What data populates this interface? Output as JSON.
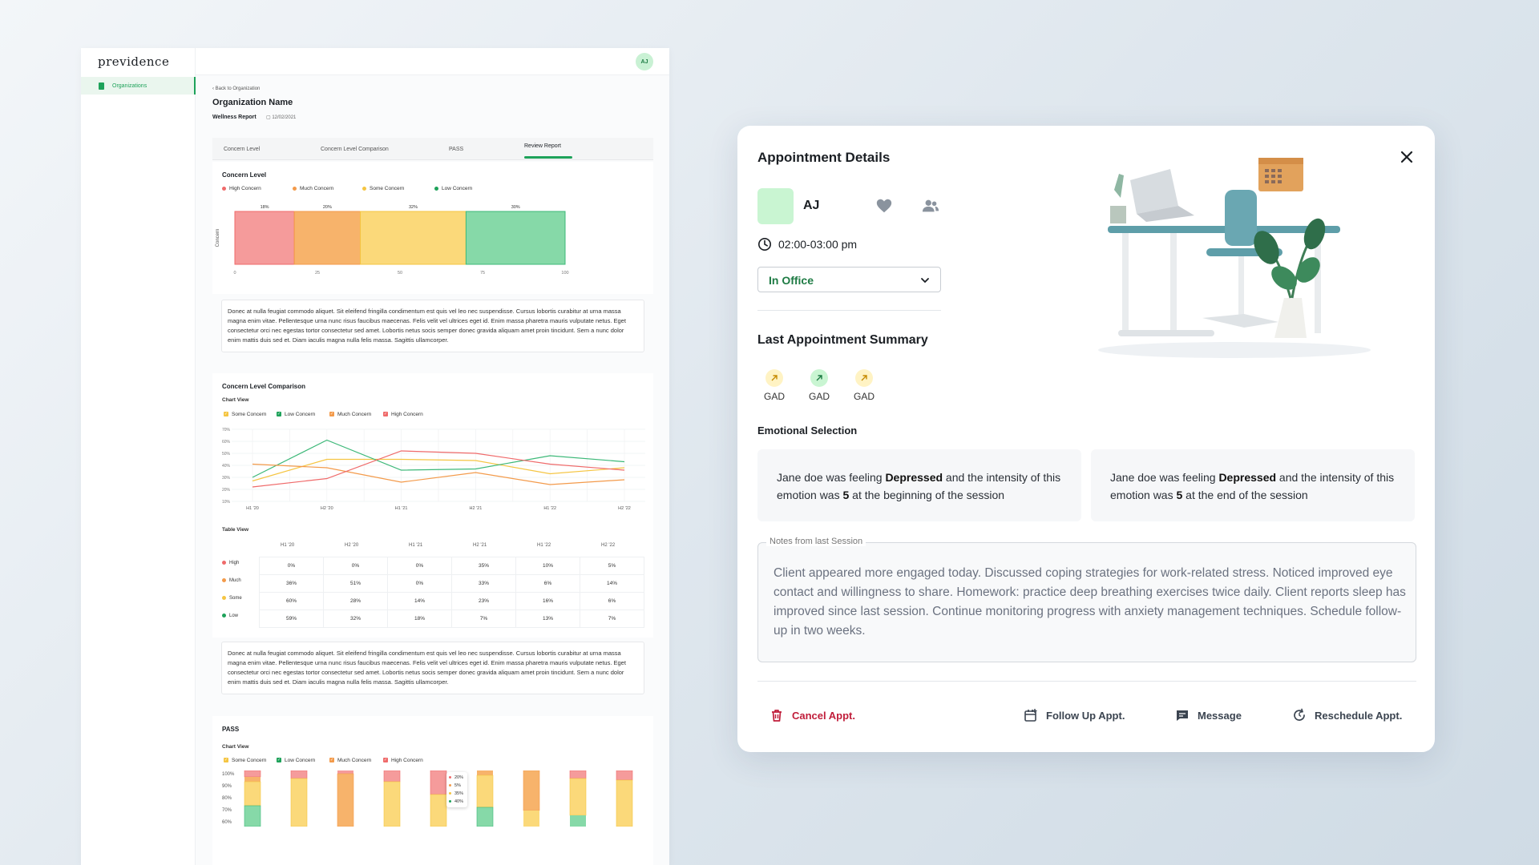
{
  "app": {
    "logo": "previdence",
    "nav_item": "Organizations",
    "user_initials": "AJ"
  },
  "report": {
    "back": "Back to Organization",
    "org_name": "Organization Name",
    "report_title": "Wellness Report",
    "date": "12/02/2021",
    "tabs": [
      "Concern Level",
      "Concern Level Comparison",
      "PASS",
      "Review Report"
    ],
    "concern_level": {
      "title": "Concern Level",
      "legend": [
        "High Concern",
        "Much Concern",
        "Some Concern",
        "Low Concern"
      ],
      "ylabel": "Concern",
      "pct_labels": [
        "18%",
        "20%",
        "32%",
        "30%"
      ],
      "ticks": [
        "0",
        "25",
        "50",
        "75",
        "100"
      ]
    },
    "paragraph": "Donec at nulla feugiat commodo aliquet. Sit eleifend fringilla condimentum est quis vel leo nec suspendisse. Cursus lobortis curabitur at urna massa magna enim vitae. Pellentesque urna nunc risus faucibus maecenas. Felis velit vel ultrices eget id. Enim massa pharetra mauris vulputate netus. Eget consectetur orci nec egestas tortor consectetur sed amet. Lobortis netus socis semper donec gravida aliquam amet proin tincidunt. Sem a nunc dolor enim mattis duis sed et. Diam iaculis magna nulla felis massa. Sagittis ullamcorper.",
    "comparison": {
      "title": "Concern Level Comparison",
      "chart_view": "Chart View",
      "table_view": "Table View",
      "legend": [
        "Some Concern",
        "Low Concern",
        "Much Concern",
        "High Concern"
      ],
      "yticks": [
        "70%",
        "60%",
        "50%",
        "40%",
        "30%",
        "20%",
        "10%"
      ],
      "xticks": [
        "H1 '20",
        "H2 '20",
        "H1 '21",
        "H2 '21",
        "H1 '22",
        "H2 '22"
      ],
      "row_labels": [
        "High",
        "Much",
        "Some",
        "Low"
      ],
      "table": [
        [
          "0%",
          "0%",
          "0%",
          "35%",
          "10%",
          "5%"
        ],
        [
          "36%",
          "51%",
          "0%",
          "33%",
          "6%",
          "14%"
        ],
        [
          "60%",
          "28%",
          "14%",
          "23%",
          "16%",
          "6%"
        ],
        [
          "59%",
          "32%",
          "18%",
          "7%",
          "13%",
          "7%"
        ]
      ]
    },
    "pass": {
      "title": "PASS",
      "chart_view": "Chart View",
      "legend": [
        "Some Concern",
        "Low Concern",
        "Much Concern",
        "High Concern"
      ],
      "yticks": [
        "100%",
        "90%",
        "80%",
        "70%",
        "60%"
      ],
      "tooltip": [
        "20%",
        "5%",
        "35%",
        "40%"
      ]
    }
  },
  "chart_data": [
    {
      "type": "bar",
      "title": "Concern Level",
      "ylabel": "Concern",
      "categories": [
        "High Concern",
        "Much Concern",
        "Some Concern",
        "Low Concern"
      ],
      "values": [
        18,
        20,
        32,
        30
      ],
      "xlim": [
        0,
        100
      ],
      "colors": [
        "#f59b9b",
        "#f7b36b",
        "#fbd97a",
        "#86d9a8"
      ]
    },
    {
      "type": "line",
      "x": [
        "H1 '20",
        "H2 '20",
        "H1 '21",
        "H2 '21",
        "H1 '22",
        "H2 '22"
      ],
      "ylim": [
        10,
        70
      ],
      "series": [
        {
          "name": "Some Concern",
          "color": "#f5c542",
          "values": [
            27,
            45,
            45,
            44,
            33,
            38
          ]
        },
        {
          "name": "Low Concern",
          "color": "#3cb878",
          "values": [
            30,
            61,
            36,
            37,
            48,
            43
          ]
        },
        {
          "name": "Much Concern",
          "color": "#f39a4a",
          "values": [
            41,
            38,
            26,
            34,
            24,
            28
          ]
        },
        {
          "name": "High Concern",
          "color": "#ef6a6a",
          "values": [
            22,
            29,
            52,
            50,
            41,
            36
          ]
        }
      ]
    }
  ],
  "modal": {
    "title": "Appointment Details",
    "name": "AJ",
    "time": "02:00-03:00 pm",
    "location": "In Office",
    "last_summary_title": "Last Appointment Summary",
    "gad": [
      {
        "label": "GAD",
        "bg": "#fff3c4",
        "color": "#c68a00"
      },
      {
        "label": "GAD",
        "bg": "#c9f5d2",
        "color": "#1e7b44"
      },
      {
        "label": "GAD",
        "bg": "#fff3c4",
        "color": "#c68a00"
      }
    ],
    "emotional_title": "Emotional Selection",
    "emo_cards": [
      {
        "pre": "Jane doe was feeling ",
        "emotion": "Depressed",
        "mid": " and the intensity of this emotion was ",
        "intensity": "5",
        "post": " at the beginning of the session"
      },
      {
        "pre": "Jane doe was feeling ",
        "emotion": "Depressed",
        "mid": " and the intensity of this emotion was ",
        "intensity": "5",
        "post": " at the end of the session"
      }
    ],
    "notes_label": "Notes from last Session",
    "notes": "Client appeared more engaged today. Discussed coping strategies for work-related stress. Noticed improved eye contact and willingness to share. Homework: practice deep breathing exercises twice daily. Client reports sleep has improved since last session. Continue monitoring progress with anxiety management techniques. Schedule follow-up in two weeks.",
    "actions": {
      "cancel": "Cancel Appt.",
      "follow_up": "Follow Up Appt.",
      "message": "Message",
      "reschedule": "Reschedule Appt."
    }
  }
}
